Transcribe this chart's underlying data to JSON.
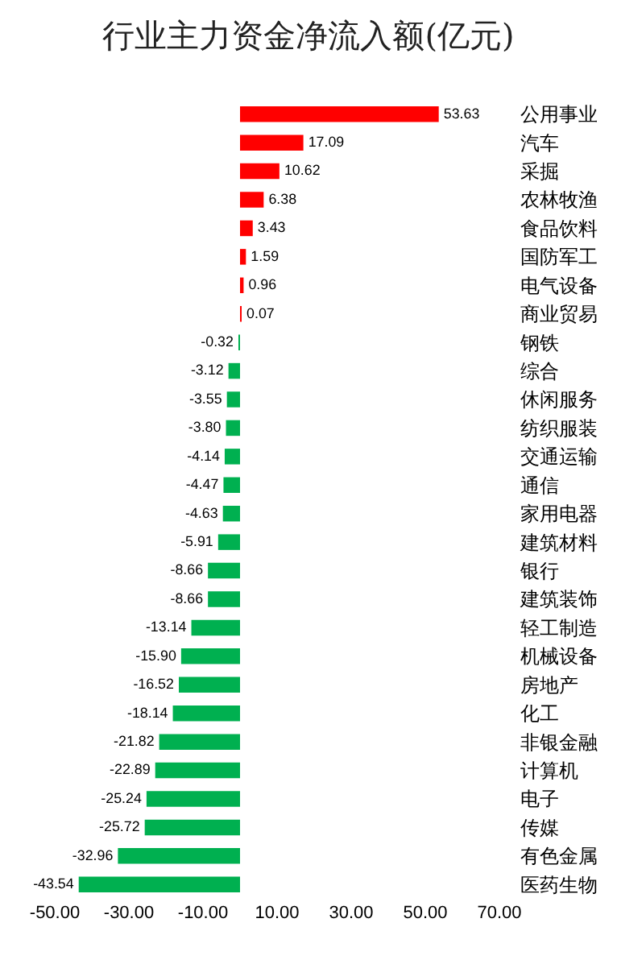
{
  "chart_data": {
    "type": "bar",
    "orientation": "horizontal",
    "title": "行业主力资金净流入额(亿元)",
    "categories": [
      "公用事业",
      "汽车",
      "采掘",
      "农林牧渔",
      "食品饮料",
      "国防军工",
      "电气设备",
      "商业贸易",
      "钢铁",
      "综合",
      "休闲服务",
      "纺织服装",
      "交通运输",
      "通信",
      "家用电器",
      "建筑材料",
      "银行",
      "建筑装饰",
      "轻工制造",
      "机械设备",
      "房地产",
      "化工",
      "非银金融",
      "计算机",
      "电子",
      "传媒",
      "有色金属",
      "医药生物"
    ],
    "values": [
      53.63,
      17.09,
      10.62,
      6.38,
      3.43,
      1.59,
      0.96,
      0.07,
      -0.32,
      -3.12,
      -3.55,
      -3.8,
      -4.14,
      -4.47,
      -4.63,
      -5.91,
      -8.66,
      -8.66,
      -13.14,
      -15.9,
      -16.52,
      -18.14,
      -21.82,
      -22.89,
      -25.24,
      -25.72,
      -32.96,
      -43.54
    ],
    "value_labels": [
      "53.63",
      "17.09",
      "10.62",
      "6.38",
      "3.43",
      "1.59",
      "0.96",
      "0.07",
      "-0.32",
      "-3.12",
      "-3.55",
      "-3.80",
      "-4.14",
      "-4.47",
      "-4.63",
      "-5.91",
      "-8.66",
      "-8.66",
      "-13.14",
      "-15.90",
      "-16.52",
      "-18.14",
      "-21.82",
      "-22.89",
      "-25.24",
      "-25.72",
      "-32.96",
      "-43.54"
    ],
    "colors": [
      "#ff0000",
      "#ff0000",
      "#ff0000",
      "#ff0000",
      "#ff0000",
      "#ff0000",
      "#ff0000",
      "#ff0000",
      "#00b050",
      "#00b050",
      "#00b050",
      "#00b050",
      "#00b050",
      "#00b050",
      "#00b050",
      "#00b050",
      "#00b050",
      "#00b050",
      "#00b050",
      "#00b050",
      "#00b050",
      "#00b050",
      "#00b050",
      "#00b050",
      "#00b050",
      "#00b050",
      "#00b050",
      "#00b050"
    ],
    "xlim": [
      -50,
      70
    ],
    "xticks": [
      {
        "value": -50,
        "label": "-50.00"
      },
      {
        "value": -30,
        "label": "-30.00"
      },
      {
        "value": -10,
        "label": "-10.00"
      },
      {
        "value": 10,
        "label": "10.00"
      },
      {
        "value": 30,
        "label": "30.00"
      },
      {
        "value": 50,
        "label": "50.00"
      },
      {
        "value": 70,
        "label": "70.00"
      }
    ]
  }
}
